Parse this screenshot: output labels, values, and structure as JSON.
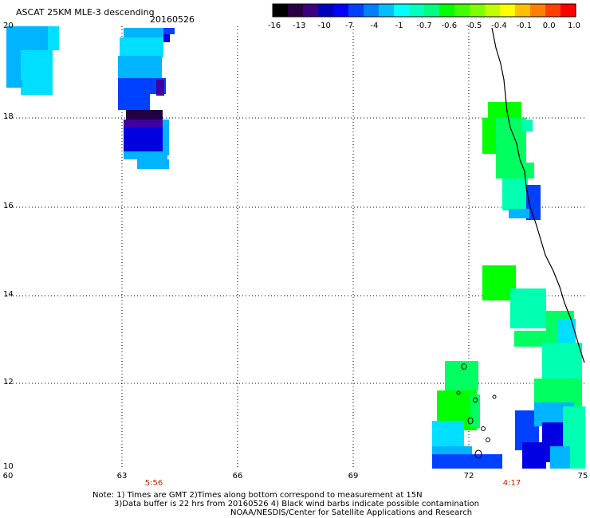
{
  "title": "ASCAT 25KM MLE-3 descending",
  "date": "20160526",
  "colorbar": {
    "labels": [
      "-16",
      "-13",
      "-10",
      "-7",
      "-4",
      "-1",
      "-0.7",
      "-0.6",
      "-0.5",
      "-0.4",
      "-0.1",
      "0.0",
      "1.0"
    ],
    "colors": [
      "#000000",
      "#2a0040",
      "#3d0080",
      "#0000c0",
      "#0000ff",
      "#0040ff",
      "#0080ff",
      "#00c0ff",
      "#00ffff",
      "#00ffc0",
      "#00ff80",
      "#00ff00",
      "#40ff00",
      "#80ff00",
      "#c0ff00",
      "#ffff00",
      "#ffc000",
      "#ff8000",
      "#ff4000",
      "#ff0000"
    ]
  },
  "axes": {
    "y_labels": [
      "20",
      "18",
      "16",
      "14",
      "12",
      "10"
    ],
    "x_labels": [
      "60",
      "63",
      "66",
      "69",
      "72",
      "75"
    ]
  },
  "times": [
    "5:56",
    "4:17"
  ],
  "notes": [
    "Note: 1) Times are GMT 2)Times along bottom correspond to measurement at 15N",
    "3)Data buffer is 22 hrs from 20160526 4) Black wind barbs indicate possible contamination",
    "NOAA/NESDIS/Center for Satellite Applications and Research"
  ],
  "palette": {
    "cyan": "#00dfff",
    "lightblue": "#00b4ff",
    "blue": "#0078ff",
    "deepblue": "#0040ff",
    "navy": "#0000e0",
    "purple": "#4000a0",
    "darkpurple": "#200040",
    "green": "#00ff00",
    "lightgreen": "#00ff60",
    "aqua": "#00ffb0"
  }
}
